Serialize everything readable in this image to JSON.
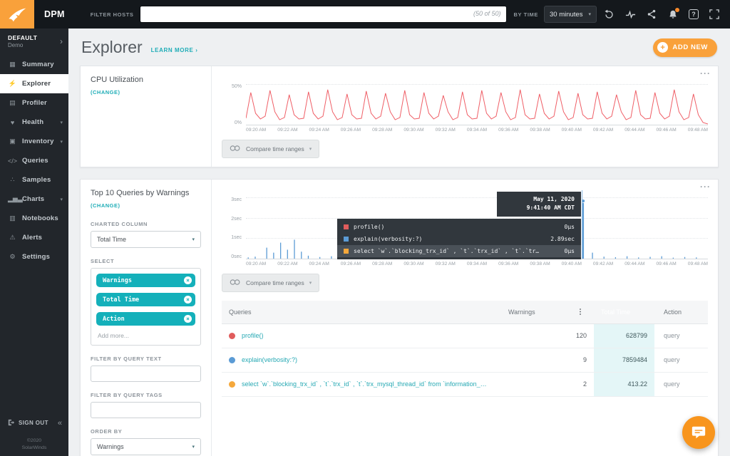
{
  "topbar": {
    "brand": "DPM",
    "filter_hosts_label": "FILTER HOSTS",
    "filter_value": "",
    "filter_count": "(50 of 50)",
    "by_time_label": "BY TIME",
    "time_range_value": "30 minutes",
    "help_glyph": "?",
    "icon_names": [
      "history-icon",
      "pulse-icon",
      "share-icon",
      "notifications-icon",
      "help-icon",
      "fullscreen-icon"
    ]
  },
  "icons": {
    "ellipsis": "···",
    "vdots": "⋮",
    "caret_down": "▾",
    "chevron_right": "›",
    "collapse": "«",
    "pill_remove": "×",
    "plus": "+"
  },
  "sidebar": {
    "env_name": "DEFAULT",
    "env_sub": "Demo",
    "items": [
      {
        "label": "Summary",
        "icon": "summary-grid-icon",
        "glyph": "▦"
      },
      {
        "label": "Explorer",
        "icon": "explorer-bolt-icon",
        "glyph": "⚡",
        "active": true
      },
      {
        "label": "Profiler",
        "icon": "profiler-rows-icon",
        "glyph": "▤"
      },
      {
        "label": "Health",
        "icon": "health-icon",
        "glyph": "♥",
        "expandable": true
      },
      {
        "label": "Inventory",
        "icon": "inventory-icon",
        "glyph": "▣",
        "expandable": true
      },
      {
        "label": "Queries",
        "icon": "queries-code-icon",
        "glyph": "</>"
      },
      {
        "label": "Samples",
        "icon": "samples-dots-icon",
        "glyph": "∴"
      },
      {
        "label": "Charts",
        "icon": "charts-bars-icon",
        "glyph": "▂▅▃",
        "expandable": true
      },
      {
        "label": "Notebooks",
        "icon": "notebooks-icon",
        "glyph": "▥"
      },
      {
        "label": "Alerts",
        "icon": "alerts-bell-icon",
        "glyph": "⚠"
      },
      {
        "label": "Settings",
        "icon": "settings-gear-icon",
        "glyph": "⚙"
      }
    ],
    "sign_out": "SIGN OUT",
    "copyright_line1": "©2020",
    "copyright_line2": "SolarWinds"
  },
  "page": {
    "title": "Explorer",
    "learn_more": "LEARN MORE ›",
    "add_new": "ADD NEW"
  },
  "cpu_card": {
    "title": "CPU Utilization",
    "change_label": "(CHANGE)",
    "compare_label": "Compare time ranges"
  },
  "queries_card": {
    "title": "Top 10 Queries by Warnings",
    "change_label": "(CHANGE)",
    "charted_column_label": "CHARTED COLUMN",
    "charted_column_value": "Total Time",
    "select_label": "SELECT",
    "pills": [
      "Warnings",
      "Total Time",
      "Action"
    ],
    "add_more": "Add more...",
    "filter_text_label": "FILTER BY QUERY TEXT",
    "filter_tags_label": "FILTER BY QUERY TAGS",
    "order_by_label": "ORDER BY",
    "order_by_value": "Warnings",
    "compare_label": "Compare time ranges",
    "tooltip": {
      "date": "May 11, 2020",
      "time": "9:41:40 AM CDT",
      "rows": [
        {
          "color": "#e05c5c",
          "label": "profile()",
          "value": "0µs"
        },
        {
          "color": "#5b9bd5",
          "label": "explain(verbosity:?)",
          "value": "2.89sec"
        },
        {
          "color": "#f5a83b",
          "label": "select `w`.`blocking_trx_id` , `t`.`trx_id` , `t`.`tr…",
          "value": "0µs",
          "highlight": true
        }
      ]
    },
    "table": {
      "headers": [
        "Queries",
        "Warnings",
        "Total Time",
        "Action"
      ],
      "rows": [
        {
          "color": "#e05c5c",
          "query": "profile()",
          "warnings": "120",
          "total_time": "628799",
          "action": "query"
        },
        {
          "color": "#5b9bd5",
          "query": "explain(verbosity:?)",
          "warnings": "9",
          "total_time": "7859484",
          "action": "query"
        },
        {
          "color": "#f5a83b",
          "query": "select `w`.`blocking_trx_id` , `t`.`trx_id` , `t`.`trx_mysql_thread_id` from `information_…",
          "warnings": "2",
          "total_time": "413.22",
          "action": "query"
        }
      ]
    }
  },
  "chart_data": [
    {
      "type": "line",
      "title": "CPU Utilization",
      "ylim": [
        0,
        50
      ],
      "yticks": [
        "50%",
        "0%"
      ],
      "xticks": [
        "09:20 AM",
        "09:22 AM",
        "09:24 AM",
        "09:26 AM",
        "09:28 AM",
        "09:30 AM",
        "09:32 AM",
        "09:34 AM",
        "09:36 AM",
        "09:38 AM",
        "09:40 AM",
        "09:42 AM",
        "09:44 AM",
        "09:46 AM",
        "09:48 AM"
      ],
      "grid": "dotted-horizontal",
      "series": [
        {
          "name": "CPU %",
          "color": "#ef5e66",
          "values": [
            8,
            44,
            15,
            7,
            11,
            47,
            17,
            6,
            9,
            41,
            13,
            7,
            8,
            45,
            15,
            7,
            11,
            48,
            17,
            6,
            9,
            42,
            13,
            7,
            8,
            46,
            15,
            7,
            11,
            43,
            17,
            6,
            9,
            47,
            13,
            7,
            8,
            44,
            15,
            7,
            11,
            40,
            17,
            6,
            9,
            45,
            13,
            7,
            8,
            47,
            15,
            7,
            11,
            44,
            17,
            6,
            9,
            48,
            13,
            7,
            8,
            42,
            15,
            7,
            11,
            46,
            17,
            6,
            9,
            43,
            13,
            7,
            8,
            45,
            15,
            7,
            11,
            41,
            17,
            6,
            9,
            47,
            13,
            7,
            8,
            44,
            15,
            7,
            11,
            48,
            17,
            6,
            9,
            42,
            13,
            2,
            0
          ]
        }
      ]
    },
    {
      "type": "bar",
      "title": "Top 10 Queries by Warnings — Total Time",
      "unit": "sec",
      "ylim": [
        0,
        3
      ],
      "yticks": [
        "3sec",
        "2sec",
        "1sec",
        "0sec"
      ],
      "xticks": [
        "09:20 AM",
        "09:22 AM",
        "09:24 AM",
        "09:26 AM",
        "09:28 AM",
        "09:30 AM",
        "09:32 AM",
        "09:34 AM",
        "09:36 AM",
        "09:38 AM",
        "09:40 AM",
        "09:42 AM",
        "09:44 AM",
        "09:46 AM",
        "09:48 AM"
      ],
      "grid": "dotted-horizontal",
      "series": [
        {
          "name": "Query total time",
          "color": "#5b9bd5",
          "points": [
            [
              0.005,
              0.06
            ],
            [
              0.02,
              0.1
            ],
            [
              0.045,
              0.55
            ],
            [
              0.06,
              0.3
            ],
            [
              0.075,
              0.8
            ],
            [
              0.09,
              0.45
            ],
            [
              0.105,
              0.95
            ],
            [
              0.12,
              0.35
            ],
            [
              0.135,
              0.15
            ],
            [
              0.16,
              0.08
            ],
            [
              0.185,
              0.12
            ],
            [
              0.21,
              0.06
            ],
            [
              0.235,
              0.1
            ],
            [
              0.26,
              0.05
            ],
            [
              0.285,
              0.12
            ],
            [
              0.31,
              0.07
            ],
            [
              0.335,
              0.1
            ],
            [
              0.36,
              0.06
            ],
            [
              0.385,
              0.12
            ],
            [
              0.41,
              0.08
            ],
            [
              0.435,
              0.05
            ],
            [
              0.46,
              0.1
            ],
            [
              0.485,
              0.07
            ],
            [
              0.51,
              0.12
            ],
            [
              0.535,
              0.06
            ],
            [
              0.56,
              0.09
            ],
            [
              0.585,
              0.13
            ],
            [
              0.61,
              0.07
            ],
            [
              0.635,
              0.1
            ],
            [
              0.66,
              0.06
            ],
            [
              0.685,
              0.09
            ],
            [
              0.71,
              0.12
            ],
            [
              0.73,
              2.89
            ],
            [
              0.75,
              0.3
            ],
            [
              0.775,
              0.1
            ],
            [
              0.8,
              0.07
            ],
            [
              0.825,
              0.12
            ],
            [
              0.85,
              0.06
            ],
            [
              0.875,
              0.09
            ],
            [
              0.9,
              0.12
            ],
            [
              0.925,
              0.05
            ],
            [
              0.95,
              0.08
            ],
            [
              0.975,
              0.06
            ]
          ]
        }
      ],
      "hover": {
        "frac": 0.727,
        "marker_frac": 0.73,
        "marker_value": 2.89
      }
    }
  ]
}
